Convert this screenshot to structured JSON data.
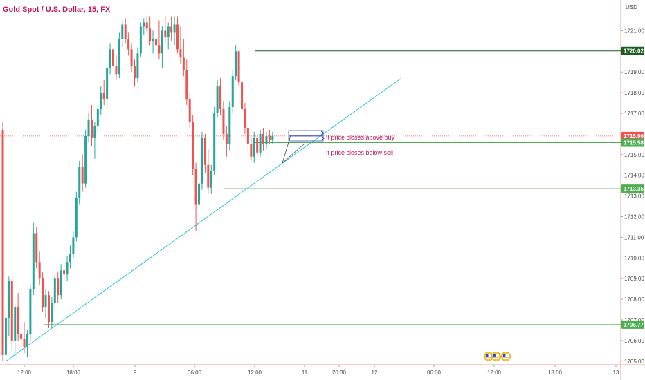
{
  "header": {
    "title": "Gold Spot / U.S. Dollar, 15, FX",
    "currency": "USD"
  },
  "colors": {
    "up": "#26a69a",
    "down": "#ef5350",
    "title": "#c2185b",
    "trendline": "#26c6da",
    "support": "#4caf50",
    "resistance": "#1b5e20",
    "current": "#ef5350",
    "note": "#c2185b",
    "arrow": "#3f51b5"
  },
  "chart_data": {
    "type": "candlestick",
    "title": "Gold Spot / U.S. Dollar, 15, FX",
    "xlabel": "",
    "ylabel": "USD",
    "ylim": [
      1704.8,
      1721.7
    ],
    "x_ticks": [
      "12:00",
      "18:00",
      "9",
      "06:00",
      "12:00",
      "11",
      "20:30",
      "12",
      "06:00",
      "12:00",
      "18:00",
      "13"
    ],
    "y_ticks": [
      1705.0,
      1706.0,
      1707.0,
      1708.0,
      1709.0,
      1710.0,
      1711.0,
      1712.0,
      1713.0,
      1714.0,
      1715.0,
      1716.0,
      1717.0,
      1718.0,
      1719.0,
      1720.0,
      1721.0
    ],
    "price_levels": [
      {
        "label": "1720.02",
        "value": 1720.02,
        "role": "resistance"
      },
      {
        "label": "1715.90",
        "value": 1715.9,
        "role": "current"
      },
      {
        "label": "1715.58",
        "value": 1715.58,
        "role": "support"
      },
      {
        "label": "1713.35",
        "value": 1713.35,
        "role": "support"
      },
      {
        "label": "1706.77",
        "value": 1706.77,
        "role": "support"
      }
    ],
    "trendline": {
      "from": [
        1,
        1705.0
      ],
      "to": [
        97,
        1718.7
      ]
    },
    "annotations": [
      "If price closes above buy",
      "If price closes below sell"
    ],
    "candles": [
      [
        1716.2,
        1716.6,
        1705.0,
        1705.3
      ],
      [
        1705.3,
        1707.6,
        1705.0,
        1707.1
      ],
      [
        1707.1,
        1709.1,
        1706.2,
        1708.9
      ],
      [
        1708.9,
        1709.0,
        1705.5,
        1706.0
      ],
      [
        1706.0,
        1707.8,
        1705.2,
        1707.6
      ],
      [
        1707.6,
        1708.3,
        1706.0,
        1706.3
      ],
      [
        1706.3,
        1707.2,
        1705.3,
        1706.1
      ],
      [
        1706.1,
        1706.9,
        1705.4,
        1705.7
      ],
      [
        1705.7,
        1706.5,
        1705.2,
        1706.3
      ],
      [
        1706.3,
        1708.7,
        1706.0,
        1708.5
      ],
      [
        1708.5,
        1711.7,
        1708.2,
        1711.2
      ],
      [
        1711.2,
        1711.5,
        1709.5,
        1709.8
      ],
      [
        1709.8,
        1710.3,
        1708.7,
        1709.0
      ],
      [
        1709.0,
        1709.3,
        1707.4,
        1707.6
      ],
      [
        1707.6,
        1708.5,
        1707.1,
        1708.2
      ],
      [
        1708.2,
        1708.4,
        1706.6,
        1706.9
      ],
      [
        1706.9,
        1708.1,
        1706.6,
        1707.8
      ],
      [
        1707.8,
        1709.2,
        1707.5,
        1709.0
      ],
      [
        1709.0,
        1709.3,
        1707.8,
        1708.2
      ],
      [
        1708.2,
        1709.7,
        1708.0,
        1709.4
      ],
      [
        1709.4,
        1709.8,
        1708.9,
        1709.2
      ],
      [
        1709.2,
        1710.1,
        1708.9,
        1709.8
      ],
      [
        1709.8,
        1710.6,
        1709.5,
        1710.2
      ],
      [
        1710.2,
        1711.3,
        1710.0,
        1711.0
      ],
      [
        1711.0,
        1713.2,
        1710.8,
        1712.9
      ],
      [
        1712.9,
        1714.7,
        1712.6,
        1714.4
      ],
      [
        1714.4,
        1715.0,
        1713.2,
        1713.6
      ],
      [
        1713.6,
        1716.2,
        1713.4,
        1715.9
      ],
      [
        1715.9,
        1717.0,
        1715.6,
        1716.7
      ],
      [
        1716.7,
        1717.4,
        1715.4,
        1715.8
      ],
      [
        1715.8,
        1716.6,
        1714.8,
        1716.4
      ],
      [
        1716.4,
        1717.4,
        1716.1,
        1717.2
      ],
      [
        1717.2,
        1718.3,
        1716.9,
        1718.0
      ],
      [
        1718.0,
        1718.6,
        1717.4,
        1717.7
      ],
      [
        1717.7,
        1719.5,
        1717.4,
        1719.2
      ],
      [
        1719.2,
        1720.4,
        1718.9,
        1720.1
      ],
      [
        1720.1,
        1720.4,
        1719.0,
        1719.3
      ],
      [
        1719.3,
        1719.8,
        1718.6,
        1718.9
      ],
      [
        1718.9,
        1720.9,
        1718.7,
        1720.6
      ],
      [
        1720.6,
        1721.5,
        1720.2,
        1721.3
      ],
      [
        1721.3,
        1721.6,
        1720.4,
        1720.6
      ],
      [
        1720.6,
        1720.9,
        1719.8,
        1720.1
      ],
      [
        1720.1,
        1720.4,
        1719.0,
        1719.3
      ],
      [
        1719.3,
        1719.6,
        1718.3,
        1718.7
      ],
      [
        1718.7,
        1720.2,
        1718.5,
        1719.9
      ],
      [
        1719.9,
        1721.4,
        1719.7,
        1721.2
      ],
      [
        1721.2,
        1721.6,
        1720.8,
        1721.4
      ],
      [
        1721.4,
        1721.7,
        1720.9,
        1721.1
      ],
      [
        1721.1,
        1721.7,
        1720.3,
        1720.5
      ],
      [
        1720.5,
        1721.0,
        1719.9,
        1720.6
      ],
      [
        1720.6,
        1721.7,
        1720.0,
        1720.3
      ],
      [
        1720.3,
        1721.5,
        1719.6,
        1719.9
      ],
      [
        1719.9,
        1721.2,
        1719.2,
        1721.0
      ],
      [
        1721.0,
        1721.7,
        1720.4,
        1720.7
      ],
      [
        1720.7,
        1721.4,
        1720.1,
        1721.2
      ],
      [
        1721.2,
        1721.7,
        1720.5,
        1720.9
      ],
      [
        1720.9,
        1721.7,
        1720.3,
        1721.3
      ],
      [
        1721.3,
        1721.7,
        1719.9,
        1720.1
      ],
      [
        1720.1,
        1721.2,
        1719.4,
        1719.7
      ],
      [
        1719.7,
        1720.6,
        1718.8,
        1719.1
      ],
      [
        1719.1,
        1719.6,
        1717.4,
        1717.7
      ],
      [
        1717.7,
        1718.0,
        1716.3,
        1716.6
      ],
      [
        1716.6,
        1716.9,
        1714.0,
        1714.3
      ],
      [
        1714.3,
        1714.6,
        1711.3,
        1712.6
      ],
      [
        1712.6,
        1713.9,
        1712.3,
        1713.6
      ],
      [
        1713.6,
        1716.1,
        1713.3,
        1715.8
      ],
      [
        1715.8,
        1716.0,
        1714.1,
        1714.5
      ],
      [
        1714.5,
        1715.3,
        1713.1,
        1713.4
      ],
      [
        1713.4,
        1714.5,
        1713.1,
        1714.2
      ],
      [
        1714.2,
        1717.3,
        1714.0,
        1717.0
      ],
      [
        1717.0,
        1718.6,
        1716.8,
        1718.3
      ],
      [
        1718.3,
        1718.7,
        1716.9,
        1717.2
      ],
      [
        1717.2,
        1717.6,
        1715.7,
        1716.0
      ],
      [
        1716.0,
        1716.4,
        1714.9,
        1715.5
      ],
      [
        1715.5,
        1717.6,
        1715.2,
        1717.3
      ],
      [
        1717.3,
        1719.1,
        1717.0,
        1718.8
      ],
      [
        1718.8,
        1720.3,
        1718.6,
        1720.0
      ],
      [
        1720.0,
        1720.1,
        1718.3,
        1718.5
      ],
      [
        1718.5,
        1718.8,
        1716.9,
        1717.2
      ],
      [
        1717.2,
        1717.5,
        1716.0,
        1716.3
      ],
      [
        1716.3,
        1716.6,
        1715.2,
        1715.5
      ],
      [
        1715.5,
        1715.8,
        1714.7,
        1714.9
      ],
      [
        1714.9,
        1716.1,
        1714.6,
        1715.8
      ],
      [
        1715.8,
        1716.0,
        1714.9,
        1715.1
      ],
      [
        1715.1,
        1716.2,
        1714.9,
        1716.0
      ],
      [
        1716.0,
        1716.3,
        1715.2,
        1715.5
      ],
      [
        1715.5,
        1716.1,
        1715.3,
        1715.9
      ],
      [
        1715.9,
        1716.2,
        1715.5,
        1715.7
      ],
      [
        1715.7,
        1716.1,
        1715.5,
        1715.9
      ]
    ]
  }
}
